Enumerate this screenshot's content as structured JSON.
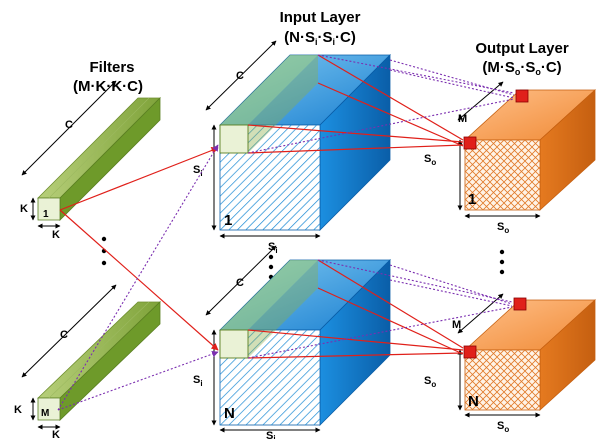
{
  "headers": {
    "filters_title": "Filters",
    "filters_dims": "(M·K·K·C)",
    "input_title": "Input Layer",
    "input_dims_pre": "(N·S",
    "input_dims_mid": "·S",
    "input_dims_post": "·C)",
    "output_title": "Output Layer",
    "output_dims_pre": "(M·S",
    "output_dims_mid": "·S",
    "output_dims_post": "·C)"
  },
  "labels": {
    "c": "C",
    "k": "K",
    "m": "M",
    "s": "S",
    "sub_i": "i",
    "sub_o": "o",
    "filter_first_index": "1",
    "filter_last_index": "M",
    "input_first_index": "1",
    "input_last_index": "N",
    "output_first_index": "1",
    "output_last_index": "N"
  },
  "colors": {
    "filter_green": "#8db04a",
    "input_blue": "#1a8ad4",
    "output_orange": "#f59a4a",
    "connection_red": "#e0201a",
    "connection_purple": "#7b2fb0"
  }
}
